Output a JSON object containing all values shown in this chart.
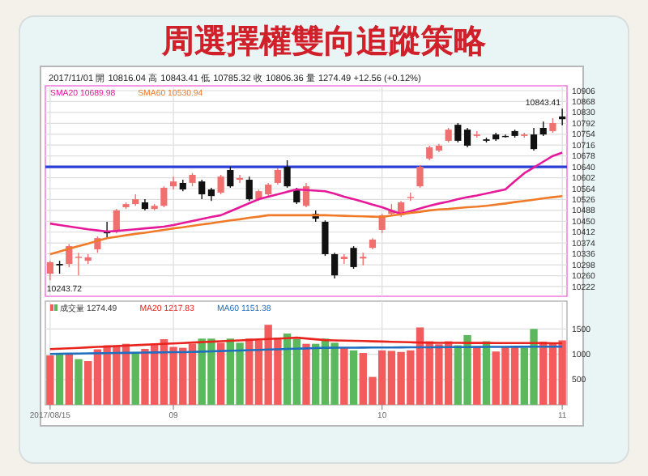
{
  "chart_data": [
    {
      "type": "candlestick",
      "title": "周選擇權雙向追蹤策略",
      "subtitle": "2017/11/01 開 10816.04 高 10843.41 低 10785.32 收 10806.36 量 1274.49 +12.56 (+0.12%)",
      "categories": [
        "2017/08/15",
        null,
        null,
        null,
        null,
        null,
        null,
        null,
        null,
        null,
        null,
        null,
        null,
        "09",
        null,
        null,
        null,
        null,
        null,
        null,
        null,
        null,
        null,
        null,
        null,
        null,
        null,
        null,
        null,
        null,
        null,
        null,
        null,
        null,
        null,
        "10",
        null,
        null,
        null,
        null,
        null,
        null,
        null,
        null,
        null,
        null,
        null,
        null,
        null,
        null,
        null,
        null,
        null,
        null,
        "11"
      ],
      "ohlc": [
        [
          10267,
          10312,
          10243.72,
          10307
        ],
        [
          10301,
          10312,
          10267,
          10296
        ],
        [
          10301,
          10370,
          10290,
          10363
        ],
        [
          10324,
          10340,
          10261,
          10326
        ],
        [
          10312,
          10335,
          10301,
          10324
        ],
        [
          10352,
          10397,
          10340,
          10391
        ],
        [
          10414,
          10448,
          10391,
          10408
        ],
        [
          10414,
          10493,
          10408,
          10488
        ],
        [
          10499,
          10516,
          10493,
          10510
        ],
        [
          10510,
          10544,
          10504,
          10527
        ],
        [
          10516,
          10527,
          10488,
          10493
        ],
        [
          10493,
          10510,
          10488,
          10504
        ],
        [
          10504,
          10572,
          10499,
          10567
        ],
        [
          10572,
          10606,
          10561,
          10589
        ],
        [
          10584,
          10595,
          10555,
          10561
        ],
        [
          10584,
          10618,
          10572,
          10612
        ],
        [
          10589,
          10595,
          10527,
          10544
        ],
        [
          10561,
          10567,
          10521,
          10538
        ],
        [
          10550,
          10612,
          10544,
          10606
        ],
        [
          10629,
          10640,
          10567,
          10572
        ],
        [
          10595,
          10612,
          10584,
          10601
        ],
        [
          10595,
          10606,
          10521,
          10527
        ],
        [
          10527,
          10561,
          10521,
          10555
        ],
        [
          10544,
          10584,
          10538,
          10578
        ],
        [
          10584,
          10635,
          10578,
          10629
        ],
        [
          10640,
          10663,
          10567,
          10572
        ],
        [
          10561,
          10567,
          10510,
          10516
        ],
        [
          10504,
          10584,
          10499,
          10572
        ],
        [
          10476,
          10488,
          10448,
          10459
        ],
        [
          10448,
          10453,
          10329,
          10335
        ],
        [
          10335,
          10340,
          10250,
          10261
        ],
        [
          10318,
          10335,
          10301,
          10326
        ],
        [
          10357,
          10363,
          10284,
          10290
        ],
        [
          10320,
          10340,
          10296,
          10326
        ],
        [
          10357,
          10391,
          10352,
          10386
        ],
        [
          10420,
          10476,
          10408,
          10471
        ],
        [
          10476,
          10510,
          10471,
          10488
        ],
        [
          10471,
          10521,
          10465,
          10516
        ],
        [
          10533,
          10550,
          10521,
          10535
        ],
        [
          10572,
          10646,
          10567,
          10640
        ],
        [
          10669,
          10714,
          10663,
          10708
        ],
        [
          10697,
          10720,
          10691,
          10714
        ],
        [
          10731,
          10776,
          10725,
          10770
        ],
        [
          10787,
          10793,
          10725,
          10731
        ],
        [
          10770,
          10776,
          10708,
          10714
        ],
        [
          10748,
          10765,
          10742,
          10753
        ],
        [
          10736,
          10742,
          10725,
          10731
        ],
        [
          10753,
          10759,
          10731,
          10736
        ],
        [
          10748,
          10753,
          10742,
          10745
        ],
        [
          10765,
          10770,
          10742,
          10748
        ],
        [
          10748,
          10759,
          10742,
          10753
        ],
        [
          10753,
          10776,
          10697,
          10702
        ],
        [
          10776,
          10798,
          10748,
          10753
        ],
        [
          10765,
          10810,
          10759,
          10793
        ],
        [
          10816.04,
          10843.41,
          10785.32,
          10806.36
        ]
      ],
      "series": [
        {
          "type": "line",
          "name": "SMA20 10689.98",
          "color": "#e6199a",
          "values": [
            10442,
            10437,
            10432,
            10427,
            10422,
            10418,
            10414,
            10416,
            10419,
            10422,
            10425,
            10428,
            10431,
            10437,
            10444,
            10451,
            10458,
            10465,
            10471,
            10485,
            10499,
            10513,
            10527,
            10536,
            10544,
            10553,
            10561,
            10559,
            10557,
            10555,
            10546,
            10536,
            10527,
            10518,
            10508,
            10499,
            10487,
            10476,
            10485,
            10495,
            10504,
            10512,
            10519,
            10527,
            10534,
            10540,
            10547,
            10554,
            10561,
            10590,
            10618,
            10638,
            10658,
            10678,
            10690
          ]
        },
        {
          "type": "line",
          "name": "SMA60 10530.94",
          "color": "#f07a28",
          "values": [
            10335,
            10344,
            10354,
            10363,
            10372,
            10382,
            10391,
            10396,
            10401,
            10406,
            10410,
            10415,
            10420,
            10425,
            10429,
            10434,
            10439,
            10443,
            10448,
            10453,
            10457,
            10462,
            10466,
            10471,
            10471,
            10471,
            10471,
            10471,
            10471,
            10471,
            10470,
            10469,
            10468,
            10467,
            10466,
            10465,
            10470,
            10474,
            10479,
            10483,
            10488,
            10491,
            10493,
            10496,
            10499,
            10501,
            10504,
            10508,
            10512,
            10517,
            10521,
            10525,
            10530,
            10534,
            10538
          ]
        }
      ],
      "ylim": [
        10188,
        10923
      ],
      "yticks": [
        10222,
        10260,
        10298,
        10336,
        10374,
        10412,
        10450,
        10488,
        10526,
        10564,
        10602,
        10640,
        10678,
        10716,
        10754,
        10792,
        10830,
        10868,
        10906
      ],
      "ref_lines": [
        {
          "axis": "y",
          "value": 10640,
          "color": "#2b3fd6"
        }
      ],
      "annotations": [
        {
          "text": "10243.72",
          "x": "2017/08/15",
          "y": 10243.72
        },
        {
          "text": "10843.41",
          "x": "11",
          "y": 10843.41
        }
      ],
      "grid": true,
      "legend": "top left",
      "tick_labels": "y"
    },
    {
      "type": "bar",
      "categories": [
        "2017/08/15",
        null,
        null,
        null,
        null,
        null,
        null,
        null,
        null,
        null,
        null,
        null,
        null,
        "09",
        null,
        null,
        null,
        null,
        null,
        null,
        null,
        null,
        null,
        null,
        null,
        null,
        null,
        null,
        null,
        null,
        null,
        null,
        null,
        null,
        null,
        "10",
        null,
        null,
        null,
        null,
        null,
        null,
        null,
        null,
        null,
        null,
        null,
        null,
        null,
        null,
        null,
        null,
        null,
        null,
        "11"
      ],
      "series": [
        {
          "type": "bar",
          "name": "成交量 1274.49",
          "values": [
            976,
            1006,
            1006,
            903,
            864,
            1097,
            1176,
            1176,
            1206,
            1045,
            1106,
            1206,
            1297,
            1145,
            1127,
            1206,
            1309,
            1309,
            1227,
            1309,
            1227,
            1309,
            1279,
            1582,
            1327,
            1409,
            1297,
            1206,
            1206,
            1309,
            1227,
            1127,
            1076,
            1024,
            551,
            1076,
            1066,
            1045,
            1076,
            1530,
            1257,
            1197,
            1257,
            1176,
            1379,
            1157,
            1257,
            1054,
            1145,
            1145,
            1127,
            1500,
            1248,
            1206,
            1274.49
          ],
          "colors": [
            "#f25c5c",
            "#5cb85c",
            "#f25c5c",
            "#5cb85c",
            "#f25c5c",
            "#f25c5c",
            "#f25c5c",
            "#f25c5c",
            "#f25c5c",
            "#5cb85c",
            "#f25c5c",
            "#f25c5c",
            "#f25c5c",
            "#f25c5c",
            "#f25c5c",
            "#f25c5c",
            "#5cb85c",
            "#5cb85c",
            "#f25c5c",
            "#5cb85c",
            "#5cb85c",
            "#f25c5c",
            "#f25c5c",
            "#f25c5c",
            "#f25c5c",
            "#5cb85c",
            "#5cb85c",
            "#f25c5c",
            "#5cb85c",
            "#5cb85c",
            "#5cb85c",
            "#f25c5c",
            "#5cb85c",
            "#f25c5c",
            "#f25c5c",
            "#f25c5c",
            "#f25c5c",
            "#f25c5c",
            "#f25c5c",
            "#f25c5c",
            "#f25c5c",
            "#f25c5c",
            "#f25c5c",
            "#5cb85c",
            "#5cb85c",
            "#f25c5c",
            "#5cb85c",
            "#f25c5c",
            "#f25c5c",
            "#f25c5c",
            "#5cb85c",
            "#5cb85c",
            "#f25c5c",
            "#f25c5c",
            "#f25c5c"
          ]
        },
        {
          "type": "line",
          "name": "MA20 1217.83",
          "color": "#e8241f",
          "values": [
            1100,
            1109,
            1117,
            1126,
            1135,
            1144,
            1152,
            1161,
            1170,
            1179,
            1187,
            1196,
            1205,
            1213,
            1222,
            1231,
            1240,
            1248,
            1257,
            1266,
            1274,
            1283,
            1292,
            1300,
            1309,
            1318,
            1327,
            1311,
            1295,
            1279,
            1274,
            1270,
            1265,
            1260,
            1255,
            1251,
            1246,
            1241,
            1236,
            1232,
            1227,
            1226,
            1226,
            1225,
            1224,
            1224,
            1223,
            1222,
            1222,
            1221,
            1220,
            1220,
            1219,
            1218,
            1218
          ]
        },
        {
          "type": "line",
          "name": "MA60 1151.38",
          "color": "#1f6fc0",
          "values": [
            1006,
            1009,
            1011,
            1014,
            1016,
            1019,
            1022,
            1024,
            1027,
            1029,
            1032,
            1035,
            1037,
            1040,
            1042,
            1045,
            1051,
            1057,
            1063,
            1068,
            1074,
            1080,
            1086,
            1092,
            1098,
            1104,
            1109,
            1115,
            1121,
            1127,
            1128,
            1129,
            1130,
            1131,
            1132,
            1133,
            1134,
            1135,
            1136,
            1137,
            1138,
            1139,
            1140,
            1141,
            1142,
            1143,
            1144,
            1145,
            1146,
            1147,
            1147,
            1148,
            1149,
            1150,
            1151
          ]
        }
      ],
      "ylim": [
        0,
        2050
      ],
      "yticks": [
        500,
        1000,
        1500
      ],
      "grid": true,
      "legend": "top left"
    }
  ]
}
